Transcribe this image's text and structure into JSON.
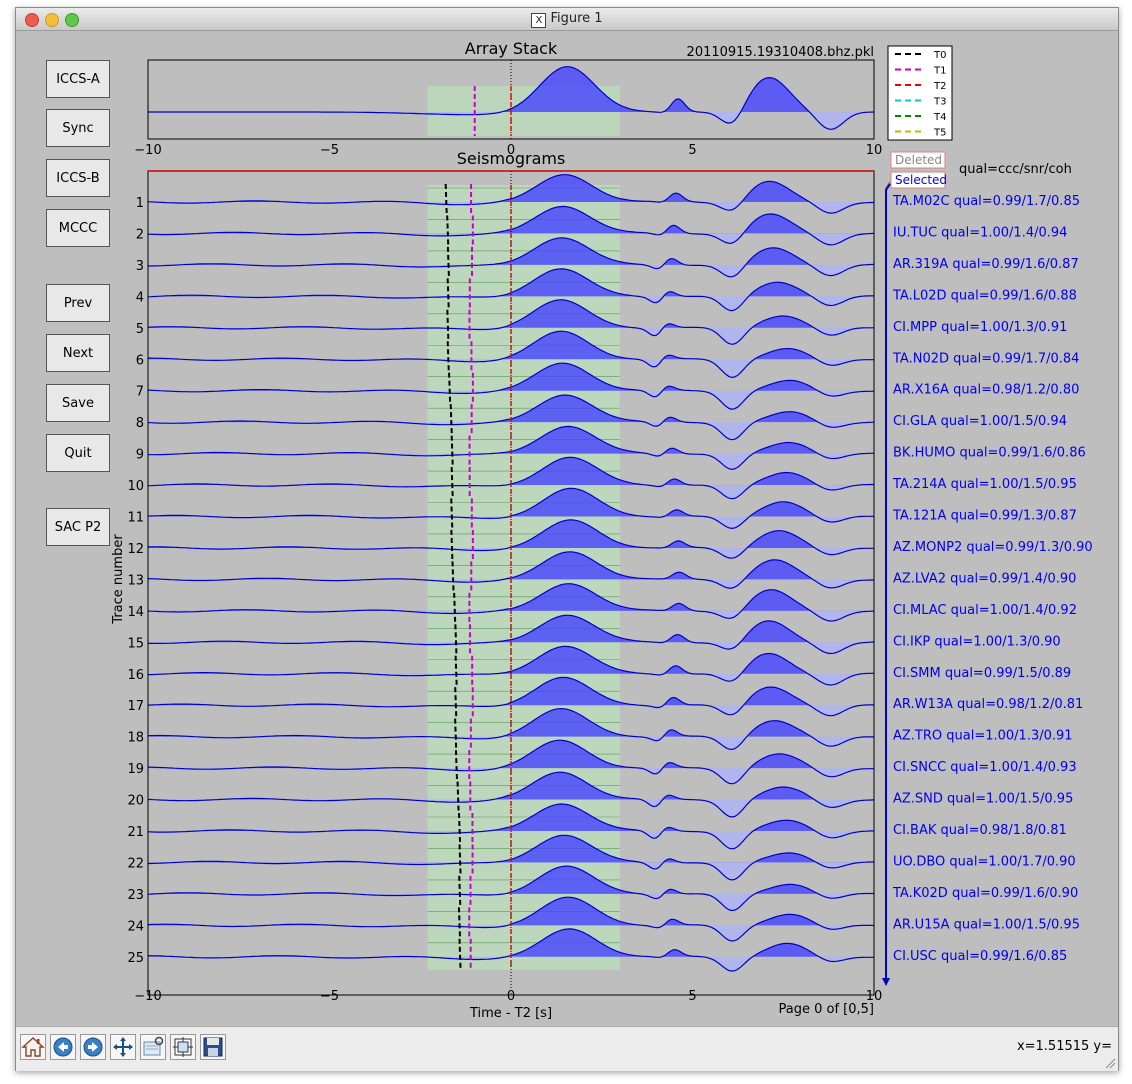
{
  "window": {
    "title": "Figure 1"
  },
  "buttons": {
    "iccs_a": "ICCS-A",
    "sync": "Sync",
    "iccs_b": "ICCS-B",
    "mccc": "MCCC",
    "prev": "Prev",
    "next": "Next",
    "save": "Save",
    "quit": "Quit",
    "sac_p2": "SAC P2"
  },
  "stack": {
    "title": "Array Stack",
    "filename": "20110915.19310408.bhz.pkl",
    "xticks": [
      "−10",
      "−5",
      "0",
      "5",
      "10"
    ],
    "legend": [
      "T0",
      "T1",
      "T2",
      "T3",
      "T4",
      "T5"
    ],
    "legend_colors": [
      "#000000",
      "#cc00cc",
      "#ee0000",
      "#00cccc",
      "#008800",
      "#bbbb00"
    ]
  },
  "seis": {
    "title": "Seismograms",
    "ylabel": "Trace number",
    "xlabel": "Time - T2 [s]",
    "page": "Page 0 of [0,5]",
    "xticks": [
      "−10",
      "−5",
      "0",
      "5",
      "10"
    ],
    "deleted_label": "Deleted",
    "selected_label": "Selected",
    "qual_header": "qual=ccc/snr/coh"
  },
  "traces": [
    {
      "num": "1",
      "label": "TA.M02C   qual=0.99/1.7/0.85"
    },
    {
      "num": "2",
      "label": "IU.TUC    qual=1.00/1.4/0.94"
    },
    {
      "num": "3",
      "label": "AR.319A   qual=0.99/1.6/0.87"
    },
    {
      "num": "4",
      "label": "TA.L02D   qual=0.99/1.6/0.88"
    },
    {
      "num": "5",
      "label": "CI.MPP    qual=1.00/1.3/0.91"
    },
    {
      "num": "6",
      "label": "TA.N02D   qual=0.99/1.7/0.84"
    },
    {
      "num": "7",
      "label": "AR.X16A   qual=0.98/1.2/0.80"
    },
    {
      "num": "8",
      "label": "CI.GLA    qual=1.00/1.5/0.94"
    },
    {
      "num": "9",
      "label": "BK.HUMO   qual=0.99/1.6/0.86"
    },
    {
      "num": "10",
      "label": "TA.214A   qual=1.00/1.5/0.95"
    },
    {
      "num": "11",
      "label": "TA.121A   qual=0.99/1.3/0.87"
    },
    {
      "num": "12",
      "label": "AZ.MONP2  qual=0.99/1.3/0.90"
    },
    {
      "num": "13",
      "label": "AZ.LVA2   qual=0.99/1.4/0.90"
    },
    {
      "num": "14",
      "label": "CI.MLAC   qual=1.00/1.4/0.92"
    },
    {
      "num": "15",
      "label": "CI.IKP    qual=1.00/1.3/0.90"
    },
    {
      "num": "16",
      "label": "CI.SMM    qual=0.99/1.5/0.89"
    },
    {
      "num": "17",
      "label": "AR.W13A   qual=0.98/1.2/0.81"
    },
    {
      "num": "18",
      "label": "AZ.TRO    qual=1.00/1.3/0.91"
    },
    {
      "num": "19",
      "label": "CI.SNCC   qual=1.00/1.4/0.93"
    },
    {
      "num": "20",
      "label": "AZ.SND    qual=1.00/1.5/0.95"
    },
    {
      "num": "21",
      "label": "CI.BAK    qual=0.98/1.8/0.81"
    },
    {
      "num": "22",
      "label": "UO.DBO    qual=1.00/1.7/0.90"
    },
    {
      "num": "23",
      "label": "TA.K02D   qual=0.99/1.6/0.90"
    },
    {
      "num": "24",
      "label": "AR.U15A   qual=1.00/1.5/0.95"
    },
    {
      "num": "25",
      "label": "CI.USC    qual=0.99/1.6/0.85"
    }
  ],
  "toolbar": {
    "coords": "x=1.51515     y="
  },
  "colors": {
    "trace": "#0000cc",
    "fill": "#4444ff",
    "window": "#bcdcbc",
    "label": "#0000ee"
  }
}
